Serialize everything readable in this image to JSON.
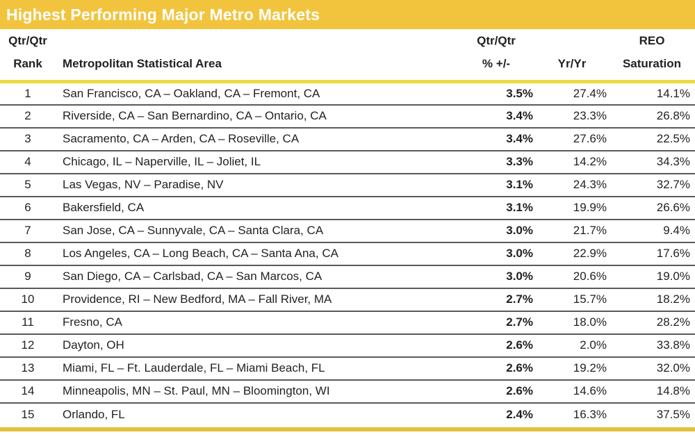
{
  "title_bar": {
    "title": "Highest Performing Major Metro Markets"
  },
  "colors": {
    "title_bar_bg": "#F2C43E",
    "title_text": "#FFFFFF",
    "header_rule_yellow": "#EDDA3E",
    "bottom_bar_gold": "#E2C13C",
    "row_divider_gray": "#59595B",
    "body_text": "#231F20"
  },
  "chart_data": {
    "type": "table",
    "title": "Highest Performing Major Metro Markets",
    "columns": [
      {
        "id": "rank",
        "line1": "Qtr/Qtr",
        "line2": "Rank"
      },
      {
        "id": "msa",
        "line1": "",
        "line2": "Metropolitan Statistical Area"
      },
      {
        "id": "qtr",
        "line1": "Qtr/Qtr",
        "line2": "% +/-"
      },
      {
        "id": "yoy",
        "line1": "",
        "line2": "Yr/Yr"
      },
      {
        "id": "reo",
        "line1": "REO",
        "line2": "Saturation"
      }
    ],
    "rows": [
      {
        "rank": "1",
        "msa": "San Francisco, CA – Oakland, CA – Fremont, CA",
        "qtr": "3.5%",
        "yoy": "27.4%",
        "reo": "14.1%"
      },
      {
        "rank": "2",
        "msa": "Riverside, CA – San Bernardino, CA – Ontario, CA",
        "qtr": "3.4%",
        "yoy": "23.3%",
        "reo": "26.8%"
      },
      {
        "rank": "3",
        "msa": "Sacramento, CA – Arden, CA – Roseville, CA",
        "qtr": "3.4%",
        "yoy": "27.6%",
        "reo": "22.5%"
      },
      {
        "rank": "4",
        "msa": "Chicago, IL – Naperville, IL – Joliet, IL",
        "qtr": "3.3%",
        "yoy": "14.2%",
        "reo": "34.3%"
      },
      {
        "rank": "5",
        "msa": "Las Vegas, NV – Paradise, NV",
        "qtr": "3.1%",
        "yoy": "24.3%",
        "reo": "32.7%"
      },
      {
        "rank": "6",
        "msa": "Bakersfield, CA",
        "qtr": "3.1%",
        "yoy": "19.9%",
        "reo": "26.6%"
      },
      {
        "rank": "7",
        "msa": "San Jose, CA – Sunnyvale, CA – Santa Clara, CA",
        "qtr": "3.0%",
        "yoy": "21.7%",
        "reo": "9.4%"
      },
      {
        "rank": "8",
        "msa": "Los Angeles, CA – Long Beach, CA – Santa Ana, CA",
        "qtr": "3.0%",
        "yoy": "22.9%",
        "reo": "17.6%"
      },
      {
        "rank": "9",
        "msa": "San Diego, CA – Carlsbad, CA – San Marcos, CA",
        "qtr": "3.0%",
        "yoy": "20.6%",
        "reo": "19.0%"
      },
      {
        "rank": "10",
        "msa": "Providence, RI – New Bedford, MA – Fall River, MA",
        "qtr": "2.7%",
        "yoy": "15.7%",
        "reo": "18.2%"
      },
      {
        "rank": "11",
        "msa": "Fresno, CA",
        "qtr": "2.7%",
        "yoy": "18.0%",
        "reo": "28.2%"
      },
      {
        "rank": "12",
        "msa": "Dayton, OH",
        "qtr": "2.6%",
        "yoy": "2.0%",
        "reo": "33.8%"
      },
      {
        "rank": "13",
        "msa": "Miami, FL – Ft. Lauderdale, FL – Miami Beach, FL",
        "qtr": "2.6%",
        "yoy": "19.2%",
        "reo": "32.0%"
      },
      {
        "rank": "14",
        "msa": "Minneapolis, MN – St. Paul, MN – Bloomington, WI",
        "qtr": "2.6%",
        "yoy": "14.6%",
        "reo": "14.8%"
      },
      {
        "rank": "15",
        "msa": "Orlando, FL",
        "qtr": "2.4%",
        "yoy": "16.3%",
        "reo": "37.5%"
      }
    ]
  }
}
